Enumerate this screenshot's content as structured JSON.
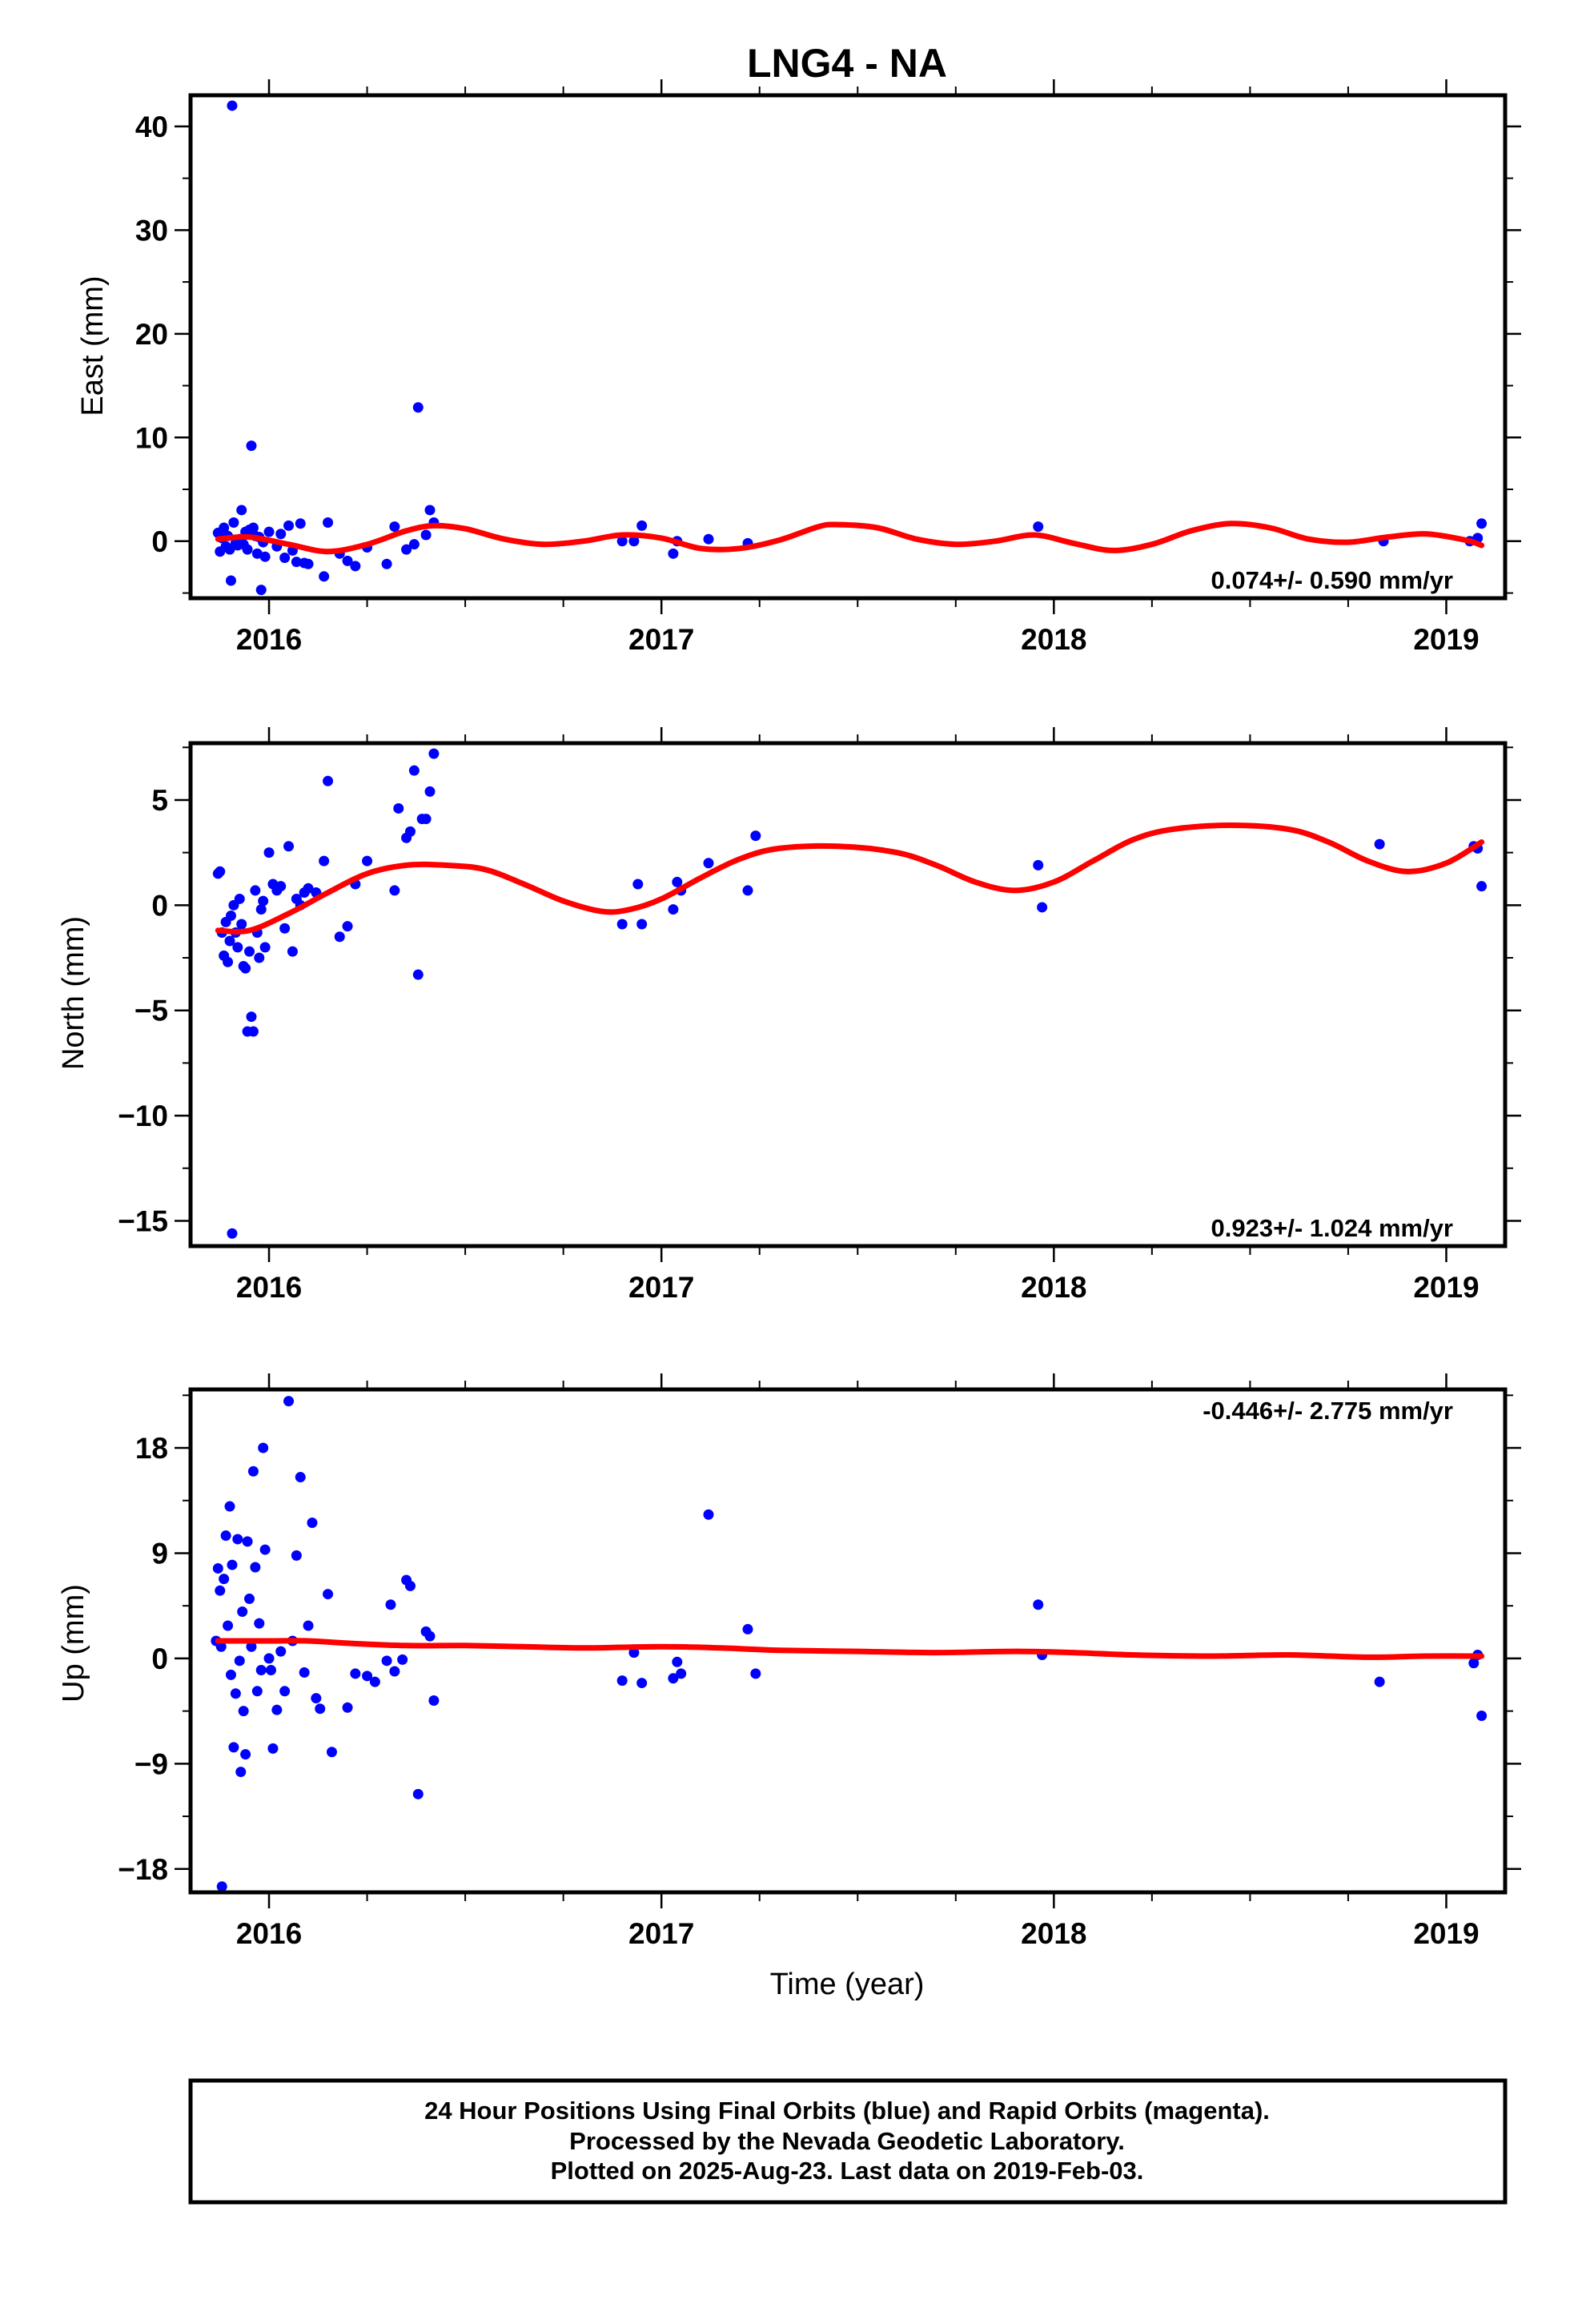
{
  "figure": {
    "title": "LNG4 - NA",
    "x_label": "Time (year)"
  },
  "caption": {
    "lines": [
      "24 Hour Positions Using Final Orbits (blue) and Rapid Orbits (magenta).",
      "Processed by the Nevada Geodetic Laboratory.",
      "Plotted on 2025-Aug-23. Last data on 2019-Feb-03."
    ]
  },
  "colors": {
    "points": "#0000ff",
    "model": "#ff0000",
    "frame": "#000000"
  },
  "chart_data": [
    {
      "type": "scatter",
      "panel": "east",
      "ylabel": "East (mm)",
      "rate": "0.074+/- 0.590 mm/yr",
      "rate_position": "bottom-right",
      "xlim": [
        2015.8,
        2019.15
      ],
      "ylim": [
        -5.5,
        43
      ],
      "yticks": [
        0,
        10,
        20,
        30,
        40
      ],
      "ytick_labels": [
        "0",
        "10",
        "20",
        "30",
        "40"
      ],
      "xticks": [
        2016,
        2017,
        2018,
        2019
      ],
      "xtick_labels": [
        "2016",
        "2017",
        "2018",
        "2019"
      ],
      "points": [
        [
          2015.87,
          0.8
        ],
        [
          2015.875,
          -1.0
        ],
        [
          2015.88,
          0.3
        ],
        [
          2015.885,
          1.3
        ],
        [
          2015.89,
          -0.5
        ],
        [
          2015.895,
          0.5
        ],
        [
          2015.9,
          -0.8
        ],
        [
          2015.903,
          -3.8
        ],
        [
          2015.906,
          42.0
        ],
        [
          2015.91,
          1.8
        ],
        [
          2015.915,
          -0.2
        ],
        [
          2015.92,
          -0.4
        ],
        [
          2015.925,
          0.2
        ],
        [
          2015.93,
          3.0
        ],
        [
          2015.935,
          -0.3
        ],
        [
          2015.94,
          0.9
        ],
        [
          2015.945,
          -0.8
        ],
        [
          2015.95,
          1.1
        ],
        [
          2015.955,
          9.2
        ],
        [
          2015.96,
          1.3
        ],
        [
          2015.965,
          0.5
        ],
        [
          2015.97,
          -1.2
        ],
        [
          2015.975,
          0.4
        ],
        [
          2015.98,
          -4.7
        ],
        [
          2015.985,
          -0.1
        ],
        [
          2015.99,
          -1.5
        ],
        [
          2016.0,
          0.9
        ],
        [
          2016.02,
          -0.5
        ],
        [
          2016.03,
          0.7
        ],
        [
          2016.04,
          -1.6
        ],
        [
          2016.05,
          1.5
        ],
        [
          2016.06,
          -0.9
        ],
        [
          2016.07,
          -2.0
        ],
        [
          2016.08,
          1.7
        ],
        [
          2016.09,
          -2.1
        ],
        [
          2016.1,
          -2.2
        ],
        [
          2016.14,
          -3.4
        ],
        [
          2016.15,
          1.8
        ],
        [
          2016.18,
          -1.2
        ],
        [
          2016.2,
          -1.9
        ],
        [
          2016.22,
          -2.4
        ],
        [
          2016.25,
          -0.6
        ],
        [
          2016.3,
          -2.2
        ],
        [
          2016.32,
          1.4
        ],
        [
          2016.35,
          -0.8
        ],
        [
          2016.37,
          -0.3
        ],
        [
          2016.38,
          12.9
        ],
        [
          2016.4,
          0.6
        ],
        [
          2016.41,
          3.0
        ],
        [
          2016.42,
          1.8
        ],
        [
          2016.9,
          0.0
        ],
        [
          2016.93,
          0.0
        ],
        [
          2016.95,
          1.5
        ],
        [
          2017.03,
          -1.2
        ],
        [
          2017.04,
          0.0
        ],
        [
          2017.12,
          0.2
        ],
        [
          2017.22,
          -0.2
        ],
        [
          2017.96,
          1.4
        ],
        [
          2018.84,
          0.0
        ],
        [
          2019.06,
          0.0
        ],
        [
          2019.08,
          0.3
        ],
        [
          2019.09,
          1.7
        ]
      ],
      "model": [
        [
          2015.87,
          0.2
        ],
        [
          2015.95,
          0.4
        ],
        [
          2016.05,
          -0.3
        ],
        [
          2016.15,
          -1.0
        ],
        [
          2016.25,
          -0.3
        ],
        [
          2016.35,
          1.0
        ],
        [
          2016.42,
          1.5
        ],
        [
          2016.5,
          1.2
        ],
        [
          2016.6,
          0.2
        ],
        [
          2016.7,
          -0.3
        ],
        [
          2016.8,
          0.0
        ],
        [
          2016.9,
          0.6
        ],
        [
          2017.0,
          0.3
        ],
        [
          2017.1,
          -0.7
        ],
        [
          2017.2,
          -0.7
        ],
        [
          2017.3,
          0.1
        ],
        [
          2017.4,
          1.4
        ],
        [
          2017.45,
          1.6
        ],
        [
          2017.55,
          1.3
        ],
        [
          2017.65,
          0.2
        ],
        [
          2017.75,
          -0.3
        ],
        [
          2017.85,
          0.0
        ],
        [
          2017.95,
          0.6
        ],
        [
          2018.05,
          -0.2
        ],
        [
          2018.15,
          -0.9
        ],
        [
          2018.25,
          -0.3
        ],
        [
          2018.35,
          1.0
        ],
        [
          2018.45,
          1.7
        ],
        [
          2018.55,
          1.3
        ],
        [
          2018.65,
          0.2
        ],
        [
          2018.75,
          -0.1
        ],
        [
          2018.85,
          0.4
        ],
        [
          2018.95,
          0.7
        ],
        [
          2019.05,
          0.1
        ],
        [
          2019.09,
          -0.4
        ]
      ]
    },
    {
      "type": "scatter",
      "panel": "north",
      "ylabel": "North (mm)",
      "rate": "0.923+/- 1.024 mm/yr",
      "rate_position": "bottom-right",
      "xlim": [
        2015.8,
        2019.15
      ],
      "ylim": [
        -16.2,
        7.7
      ],
      "yticks": [
        5,
        0,
        -5,
        -10,
        -15
      ],
      "ytick_labels": [
        "5",
        "0",
        "−5",
        "−10",
        "−15"
      ],
      "xticks": [
        2016,
        2017,
        2018,
        2019
      ],
      "xtick_labels": [
        "2016",
        "2017",
        "2018",
        "2019"
      ],
      "points": [
        [
          2015.87,
          1.5
        ],
        [
          2015.875,
          1.6
        ],
        [
          2015.88,
          -1.3
        ],
        [
          2015.885,
          -2.4
        ],
        [
          2015.89,
          -0.8
        ],
        [
          2015.895,
          -2.7
        ],
        [
          2015.9,
          -1.7
        ],
        [
          2015.903,
          -0.5
        ],
        [
          2015.906,
          -15.6
        ],
        [
          2015.91,
          0.0
        ],
        [
          2015.915,
          -1.3
        ],
        [
          2015.92,
          -2.0
        ],
        [
          2015.925,
          0.3
        ],
        [
          2015.93,
          -0.9
        ],
        [
          2015.935,
          -2.9
        ],
        [
          2015.94,
          -3.0
        ],
        [
          2015.945,
          -6.0
        ],
        [
          2015.95,
          -2.2
        ],
        [
          2015.955,
          -5.3
        ],
        [
          2015.96,
          -6.0
        ],
        [
          2015.965,
          0.7
        ],
        [
          2015.97,
          -1.3
        ],
        [
          2015.975,
          -2.5
        ],
        [
          2015.98,
          -0.2
        ],
        [
          2015.985,
          0.2
        ],
        [
          2015.99,
          -2.0
        ],
        [
          2016.0,
          2.5
        ],
        [
          2016.01,
          1.0
        ],
        [
          2016.02,
          0.7
        ],
        [
          2016.03,
          0.9
        ],
        [
          2016.04,
          -1.1
        ],
        [
          2016.05,
          2.8
        ],
        [
          2016.06,
          -2.2
        ],
        [
          2016.07,
          0.3
        ],
        [
          2016.08,
          0.0
        ],
        [
          2016.09,
          0.6
        ],
        [
          2016.1,
          0.8
        ],
        [
          2016.12,
          0.6
        ],
        [
          2016.14,
          2.1
        ],
        [
          2016.15,
          5.9
        ],
        [
          2016.18,
          -1.5
        ],
        [
          2016.2,
          -1.0
        ],
        [
          2016.22,
          1.0
        ],
        [
          2016.25,
          2.1
        ],
        [
          2016.32,
          0.7
        ],
        [
          2016.33,
          4.6
        ],
        [
          2016.35,
          3.2
        ],
        [
          2016.36,
          3.5
        ],
        [
          2016.37,
          6.4
        ],
        [
          2016.38,
          -3.3
        ],
        [
          2016.39,
          4.1
        ],
        [
          2016.4,
          4.1
        ],
        [
          2016.41,
          5.4
        ],
        [
          2016.42,
          7.2
        ],
        [
          2016.9,
          -0.9
        ],
        [
          2016.94,
          1.0
        ],
        [
          2016.95,
          -0.9
        ],
        [
          2017.03,
          -0.2
        ],
        [
          2017.04,
          1.1
        ],
        [
          2017.05,
          0.7
        ],
        [
          2017.12,
          2.0
        ],
        [
          2017.22,
          0.7
        ],
        [
          2017.24,
          3.3
        ],
        [
          2017.96,
          1.9
        ],
        [
          2017.97,
          -0.1
        ],
        [
          2018.83,
          2.9
        ],
        [
          2019.07,
          2.8
        ],
        [
          2019.08,
          2.7
        ],
        [
          2019.09,
          0.9
        ]
      ],
      "model": [
        [
          2015.87,
          -1.2
        ],
        [
          2015.95,
          -1.2
        ],
        [
          2016.05,
          -0.4
        ],
        [
          2016.15,
          0.6
        ],
        [
          2016.25,
          1.5
        ],
        [
          2016.35,
          1.9
        ],
        [
          2016.45,
          1.9
        ],
        [
          2016.55,
          1.7
        ],
        [
          2016.65,
          1.0
        ],
        [
          2016.75,
          0.2
        ],
        [
          2016.85,
          -0.3
        ],
        [
          2016.92,
          -0.2
        ],
        [
          2017.0,
          0.3
        ],
        [
          2017.1,
          1.3
        ],
        [
          2017.2,
          2.2
        ],
        [
          2017.3,
          2.7
        ],
        [
          2017.45,
          2.8
        ],
        [
          2017.6,
          2.5
        ],
        [
          2017.7,
          1.9
        ],
        [
          2017.8,
          1.1
        ],
        [
          2017.9,
          0.7
        ],
        [
          2018.0,
          1.1
        ],
        [
          2018.1,
          2.1
        ],
        [
          2018.2,
          3.1
        ],
        [
          2018.3,
          3.6
        ],
        [
          2018.45,
          3.8
        ],
        [
          2018.6,
          3.6
        ],
        [
          2018.7,
          3.0
        ],
        [
          2018.8,
          2.1
        ],
        [
          2018.9,
          1.6
        ],
        [
          2019.0,
          2.0
        ],
        [
          2019.09,
          3.0
        ]
      ]
    },
    {
      "type": "scatter",
      "panel": "up",
      "ylabel": "Up (mm)",
      "rate": "-0.446+/- 2.775 mm/yr",
      "rate_position": "top-right",
      "xlim": [
        2015.8,
        2019.15
      ],
      "ylim": [
        -20,
        23
      ],
      "yticks": [
        18,
        9,
        0,
        -9,
        -18
      ],
      "ytick_labels": [
        "18",
        "9",
        "0",
        "−9",
        "−18"
      ],
      "xticks": [
        2016,
        2017,
        2018,
        2019
      ],
      "xtick_labels": [
        "2016",
        "2017",
        "2018",
        "2019"
      ],
      "points": [
        [
          2015.865,
          1.5
        ],
        [
          2015.87,
          7.7
        ],
        [
          2015.875,
          5.8
        ],
        [
          2015.878,
          1.0
        ],
        [
          2015.88,
          -19.5
        ],
        [
          2015.885,
          6.8
        ],
        [
          2015.89,
          10.5
        ],
        [
          2015.895,
          2.8
        ],
        [
          2015.9,
          13.0
        ],
        [
          2015.903,
          -1.4
        ],
        [
          2015.906,
          8.0
        ],
        [
          2015.91,
          -7.6
        ],
        [
          2015.915,
          -3.0
        ],
        [
          2015.92,
          10.2
        ],
        [
          2015.925,
          -0.2
        ],
        [
          2015.928,
          -9.7
        ],
        [
          2015.932,
          4.0
        ],
        [
          2015.935,
          -4.5
        ],
        [
          2015.94,
          -8.2
        ],
        [
          2015.945,
          10.0
        ],
        [
          2015.95,
          5.1
        ],
        [
          2015.955,
          1.0
        ],
        [
          2015.96,
          16.0
        ],
        [
          2015.965,
          7.8
        ],
        [
          2015.97,
          -2.8
        ],
        [
          2015.975,
          3.0
        ],
        [
          2015.98,
          -1.0
        ],
        [
          2015.985,
          18.0
        ],
        [
          2015.99,
          9.3
        ],
        [
          2016.0,
          0.0
        ],
        [
          2016.005,
          -1.0
        ],
        [
          2016.01,
          -7.7
        ],
        [
          2016.02,
          -4.4
        ],
        [
          2016.03,
          0.6
        ],
        [
          2016.04,
          -2.8
        ],
        [
          2016.05,
          22.0
        ],
        [
          2016.06,
          1.5
        ],
        [
          2016.07,
          8.8
        ],
        [
          2016.08,
          15.5
        ],
        [
          2016.09,
          -1.2
        ],
        [
          2016.1,
          2.8
        ],
        [
          2016.11,
          11.6
        ],
        [
          2016.12,
          -3.4
        ],
        [
          2016.13,
          -4.3
        ],
        [
          2016.15,
          5.5
        ],
        [
          2016.16,
          -8.0
        ],
        [
          2016.2,
          -4.2
        ],
        [
          2016.22,
          -1.3
        ],
        [
          2016.25,
          -1.5
        ],
        [
          2016.27,
          -2.0
        ],
        [
          2016.3,
          -0.2
        ],
        [
          2016.31,
          4.6
        ],
        [
          2016.32,
          -1.1
        ],
        [
          2016.34,
          -0.1
        ],
        [
          2016.35,
          6.7
        ],
        [
          2016.36,
          6.2
        ],
        [
          2016.38,
          -11.6
        ],
        [
          2016.4,
          2.3
        ],
        [
          2016.41,
          1.9
        ],
        [
          2016.42,
          -3.6
        ],
        [
          2016.9,
          -1.9
        ],
        [
          2016.93,
          0.5
        ],
        [
          2016.95,
          -2.1
        ],
        [
          2017.03,
          -1.7
        ],
        [
          2017.04,
          -0.3
        ],
        [
          2017.05,
          -1.3
        ],
        [
          2017.12,
          12.3
        ],
        [
          2017.22,
          2.5
        ],
        [
          2017.24,
          -1.3
        ],
        [
          2017.96,
          4.6
        ],
        [
          2017.97,
          0.3
        ],
        [
          2018.83,
          -2.0
        ],
        [
          2019.07,
          -0.4
        ],
        [
          2019.08,
          0.3
        ],
        [
          2019.09,
          -4.9
        ]
      ],
      "model": [
        [
          2015.87,
          1.5
        ],
        [
          2016.0,
          1.5
        ],
        [
          2016.1,
          1.5
        ],
        [
          2016.2,
          1.3
        ],
        [
          2016.35,
          1.1
        ],
        [
          2016.5,
          1.1
        ],
        [
          2016.65,
          1.0
        ],
        [
          2016.8,
          0.9
        ],
        [
          2017.0,
          1.0
        ],
        [
          2017.15,
          0.9
        ],
        [
          2017.3,
          0.7
        ],
        [
          2017.5,
          0.6
        ],
        [
          2017.7,
          0.5
        ],
        [
          2017.9,
          0.6
        ],
        [
          2018.05,
          0.5
        ],
        [
          2018.2,
          0.3
        ],
        [
          2018.4,
          0.2
        ],
        [
          2018.6,
          0.3
        ],
        [
          2018.8,
          0.1
        ],
        [
          2018.95,
          0.2
        ],
        [
          2019.09,
          0.2
        ]
      ]
    }
  ]
}
